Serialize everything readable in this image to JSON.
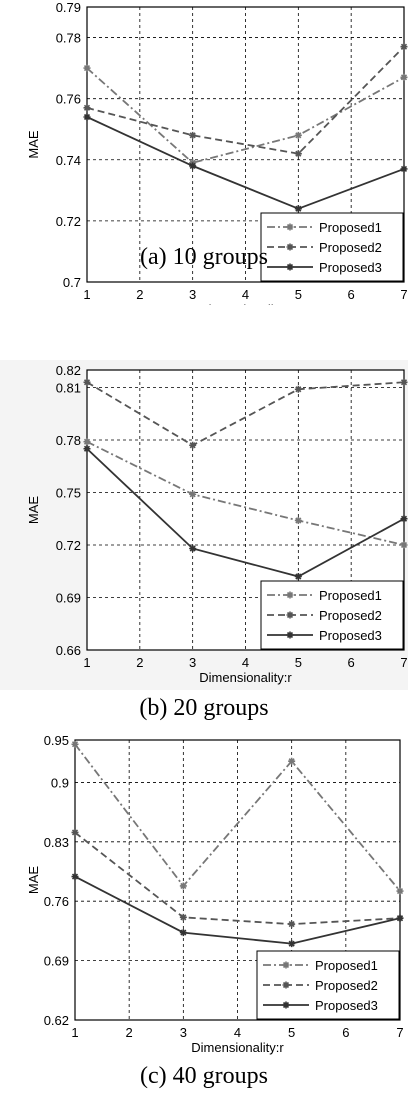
{
  "chart_data": [
    {
      "type": "line",
      "caption": "(a) 10 groups",
      "xlabel": "Dimensionality:r",
      "ylabel": "MAE",
      "x": [
        1,
        3,
        5,
        7
      ],
      "xlim": [
        1,
        7
      ],
      "xticks": [
        "1",
        "2",
        "3",
        "4",
        "5",
        "6",
        "7"
      ],
      "ylim": [
        0.7,
        0.79
      ],
      "yticks": [
        "0.7",
        "0.72",
        "0.74",
        "0.76",
        "0.78",
        "0.79"
      ],
      "grid": true,
      "legend": "bottom-right",
      "series": [
        {
          "name": "Proposed1",
          "values": [
            0.77,
            0.739,
            0.748,
            0.767
          ],
          "style": "dash-dot",
          "color": "#777777"
        },
        {
          "name": "Proposed2",
          "values": [
            0.757,
            0.748,
            0.742,
            0.777
          ],
          "style": "dashed",
          "color": "#555555"
        },
        {
          "name": "Proposed3",
          "values": [
            0.754,
            0.738,
            0.724,
            0.737
          ],
          "style": "solid",
          "color": "#333333"
        }
      ]
    },
    {
      "type": "line",
      "caption": "(b) 20 groups",
      "xlabel": "Dimensionality:r",
      "ylabel": "MAE",
      "x": [
        1,
        3,
        5,
        7
      ],
      "xlim": [
        1,
        7
      ],
      "xticks": [
        "1",
        "2",
        "3",
        "4",
        "5",
        "6",
        "7"
      ],
      "ylim": [
        0.66,
        0.82
      ],
      "yticks": [
        "0.66",
        "0.69",
        "0.72",
        "0.75",
        "0.78",
        "0.81",
        "0.82"
      ],
      "grid": true,
      "legend": "bottom-right",
      "series": [
        {
          "name": "Proposed1",
          "values": [
            0.779,
            0.749,
            0.734,
            0.72
          ],
          "style": "dash-dot",
          "color": "#777777"
        },
        {
          "name": "Proposed2",
          "values": [
            0.813,
            0.777,
            0.809,
            0.813
          ],
          "style": "dashed",
          "color": "#555555"
        },
        {
          "name": "Proposed3",
          "values": [
            0.775,
            0.718,
            0.702,
            0.735
          ],
          "style": "solid",
          "color": "#333333"
        }
      ]
    },
    {
      "type": "line",
      "caption": "(c) 40 groups",
      "xlabel": "Dimensionality:r",
      "ylabel": "MAE",
      "x": [
        1,
        3,
        5,
        7
      ],
      "xlim": [
        1,
        7
      ],
      "xticks": [
        "1",
        "2",
        "3",
        "4",
        "5",
        "6",
        "7"
      ],
      "ylim": [
        0.62,
        0.95
      ],
      "yticks": [
        "0.62",
        "0.69",
        "0.76",
        "0.83",
        "0.9",
        "0.95"
      ],
      "grid": true,
      "legend": "bottom-right",
      "series": [
        {
          "name": "Proposed1",
          "values": [
            0.945,
            0.778,
            0.925,
            0.772
          ],
          "style": "dash-dot",
          "color": "#777777"
        },
        {
          "name": "Proposed2",
          "values": [
            0.841,
            0.741,
            0.733,
            0.74
          ],
          "style": "dashed",
          "color": "#555555"
        },
        {
          "name": "Proposed3",
          "values": [
            0.789,
            0.723,
            0.71,
            0.74
          ],
          "style": "solid",
          "color": "#333333"
        }
      ]
    }
  ]
}
